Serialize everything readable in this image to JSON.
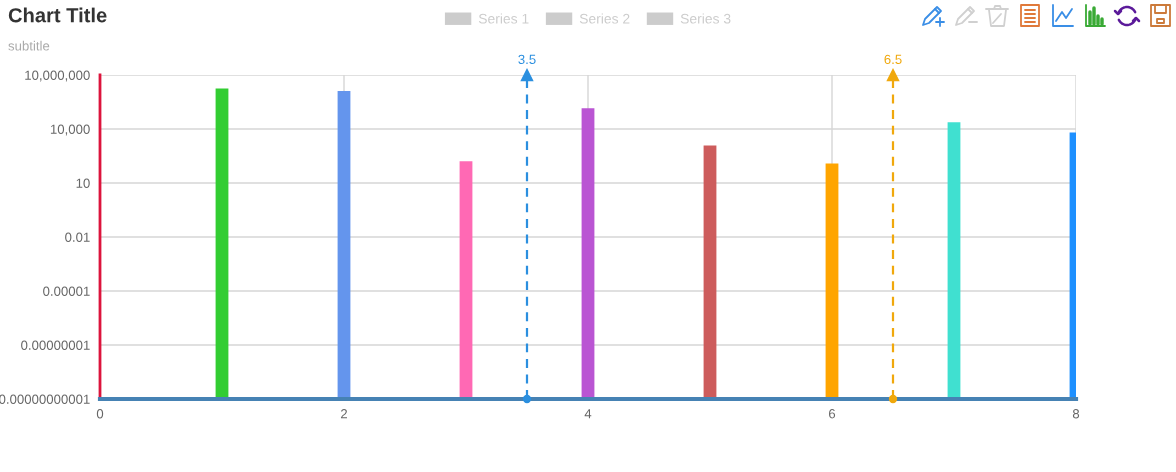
{
  "chart_data": {
    "type": "bar",
    "title": "Chart Title",
    "subtitle": "subtitle",
    "x": [
      1,
      2,
      3,
      4,
      5,
      6,
      7,
      8
    ],
    "series": [
      {
        "values": [
          1800000,
          1300000,
          160,
          140000,
          1200,
          120,
          24000,
          6300
        ],
        "colors": [
          "#32cd32",
          "#6495ed",
          "#ff69b4",
          "#ba55d3",
          "#cd5c5c",
          "#ffa500",
          "#40e0d0",
          "#1e90ff"
        ]
      },
      {
        "name": "Series 1",
        "color": "#cccccc",
        "values": [
          null,
          null,
          null,
          null,
          null,
          null,
          null,
          null
        ]
      },
      {
        "name": "Series 2",
        "color": "#cccccc",
        "values": [
          null,
          null,
          null,
          null,
          null,
          null,
          null,
          null
        ]
      },
      {
        "name": "Series 3",
        "color": "#cccccc",
        "values": [
          null,
          null,
          null,
          null,
          null,
          null,
          null,
          null
        ]
      }
    ],
    "xlim": [
      0,
      8
    ],
    "xticks": [
      0,
      2,
      4,
      6,
      8
    ],
    "log": true,
    "ylim": [
      1e-11,
      10000000
    ],
    "yticks": [
      {
        "value": 1e-11,
        "label": "0.00000000001"
      },
      {
        "value": 1e-08,
        "label": "0.00000001"
      },
      {
        "value": 1e-05,
        "label": "0.00001"
      },
      0.01,
      10,
      {
        "value": 10000,
        "label": "10,000"
      },
      {
        "value": 10000000,
        "label": "10,000,000"
      }
    ],
    "grid": true,
    "legend": "top",
    "ref_lines": [
      {
        "axis": "x",
        "value": 3.5,
        "label": "3.5",
        "color": "#2b8fdf",
        "line_style": "dashed"
      },
      {
        "axis": "x",
        "value": 6.5,
        "label": "6.5",
        "color": "#f0a80c",
        "line_style": "dashed"
      }
    ]
  }
}
